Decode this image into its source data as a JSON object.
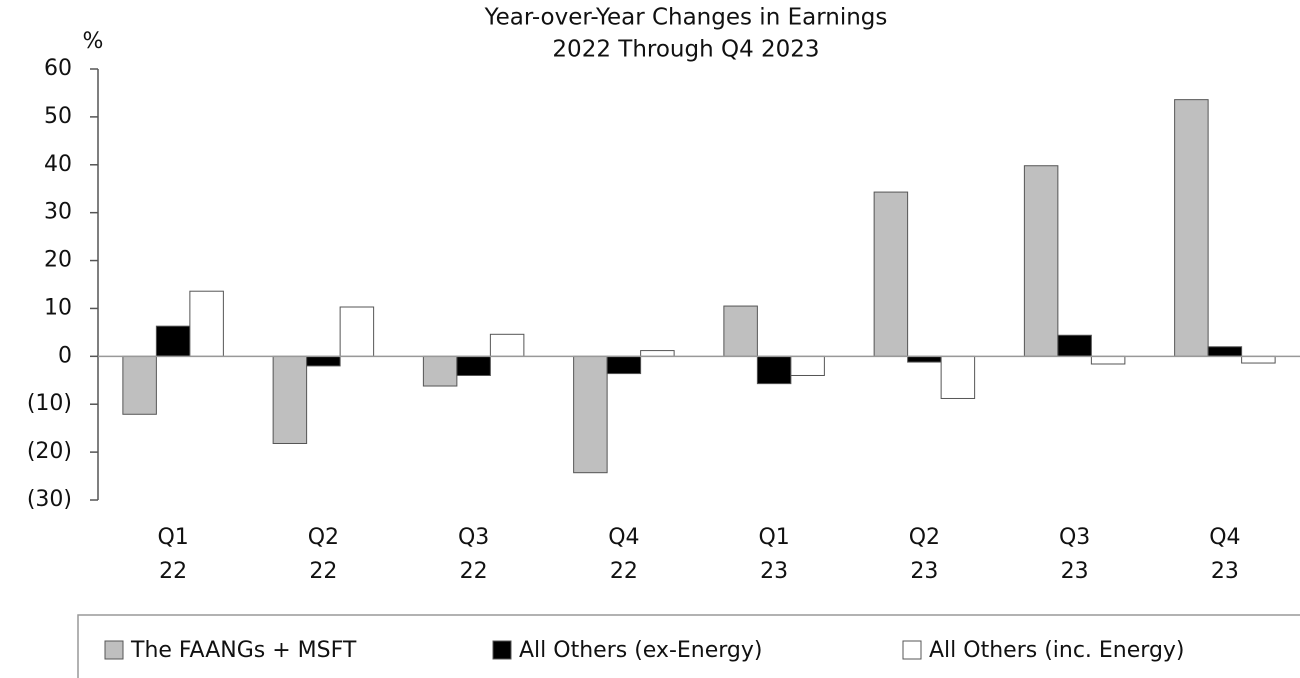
{
  "chart_data": {
    "type": "bar",
    "title": [
      "Year-over-Year Changes in Earnings",
      "2022 Through Q4 2023"
    ],
    "y_label": "%",
    "categories": [
      [
        "Q1",
        "22"
      ],
      [
        "Q2",
        "22"
      ],
      [
        "Q3",
        "22"
      ],
      [
        "Q4",
        "22"
      ],
      [
        "Q1",
        "23"
      ],
      [
        "Q2",
        "23"
      ],
      [
        "Q3",
        "23"
      ],
      [
        "Q4",
        "23"
      ]
    ],
    "series": [
      {
        "name": "The FAANGs + MSFT",
        "color": "#bfbfbf",
        "values": [
          -12.1,
          -18.2,
          -6.2,
          -24.3,
          10.5,
          34.3,
          39.8,
          53.6
        ]
      },
      {
        "name": "All Others (ex-Energy)",
        "color": "#000000",
        "values": [
          6.3,
          -2.0,
          -4.0,
          -3.6,
          -5.7,
          -1.2,
          4.4,
          2.0
        ]
      },
      {
        "name": "All Others (inc. Energy)",
        "color": "#ffffff",
        "values": [
          13.6,
          10.3,
          4.6,
          1.2,
          -4.0,
          -8.8,
          -1.6,
          -1.4
        ]
      }
    ],
    "ylim": [
      -30,
      60
    ],
    "yticks": [
      60,
      50,
      40,
      30,
      20,
      10,
      0,
      {
        "value": -10,
        "label": "(10)"
      },
      {
        "value": -20,
        "label": "(20)"
      },
      {
        "value": -30,
        "label": "(30)"
      }
    ],
    "legend": "bottom"
  }
}
